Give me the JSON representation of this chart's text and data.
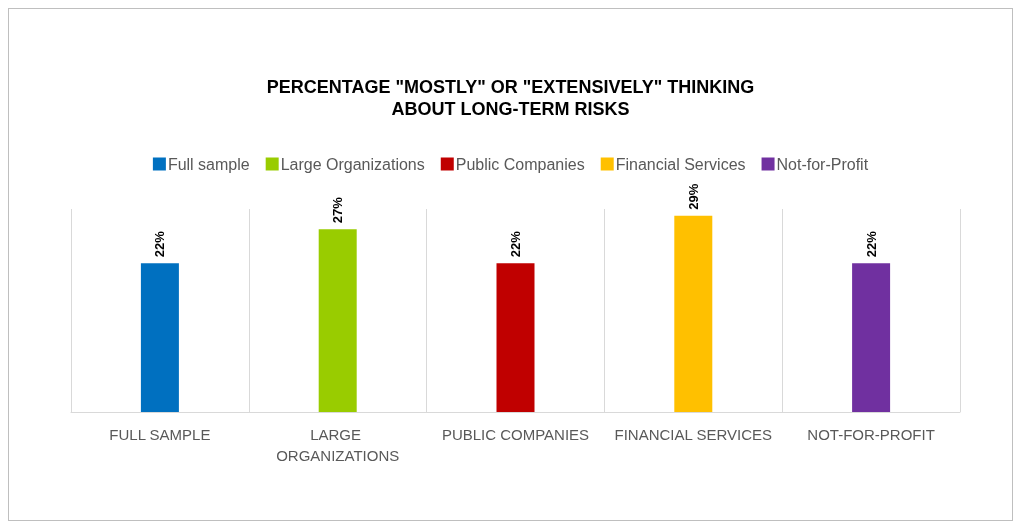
{
  "chart_data": {
    "type": "bar",
    "title": "PERCENTAGE \"MOSTLY\" OR \"EXTENSIVELY\" THINKING\nABOUT LONG-TERM RISKS",
    "categories": [
      "FULL SAMPLE",
      "LARGE ORGANIZATIONS",
      "PUBLIC COMPANIES",
      "FINANCIAL SERVICES",
      "NOT-FOR-PROFIT"
    ],
    "stacked": true,
    "legend": "top",
    "grid": "x",
    "series": [
      {
        "name": "Full sample",
        "color": "#0070c0",
        "values": [
          22,
          null,
          null,
          null,
          null
        ],
        "value_labels": [
          "22%",
          null,
          null,
          null,
          null
        ]
      },
      {
        "name": "Large Organizations",
        "color": "#99cc00",
        "values": [
          null,
          27,
          null,
          null,
          null
        ],
        "value_labels": [
          null,
          "27%",
          null,
          null,
          null
        ]
      },
      {
        "name": "Public Companies",
        "color": "#c00000",
        "values": [
          null,
          null,
          22,
          null,
          null
        ],
        "value_labels": [
          null,
          null,
          "22%",
          null,
          null
        ]
      },
      {
        "name": "Financial Services",
        "color": "#ffc000",
        "values": [
          null,
          null,
          null,
          29,
          null
        ],
        "value_labels": [
          null,
          null,
          null,
          "29%",
          null
        ]
      },
      {
        "name": "Not-for-Profit",
        "color": "#7030a0",
        "values": [
          null,
          null,
          null,
          null,
          22
        ],
        "value_labels": [
          null,
          null,
          null,
          null,
          "22%"
        ]
      }
    ]
  }
}
